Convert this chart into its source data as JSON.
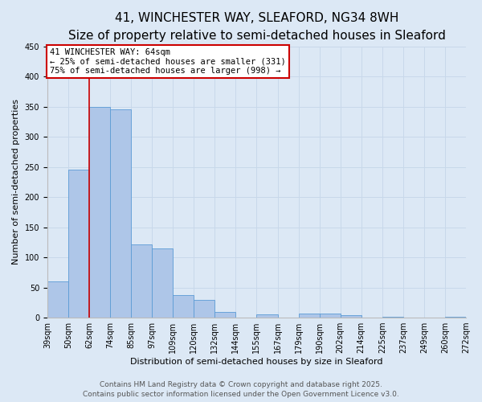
{
  "title_line1": "41, WINCHESTER WAY, SLEAFORD, NG34 8WH",
  "title_line2": "Size of property relative to semi-detached houses in Sleaford",
  "bar_heights": [
    60,
    245,
    350,
    345,
    122,
    115,
    38,
    29,
    9,
    0,
    6,
    0,
    7,
    7,
    4,
    0,
    1,
    0,
    0,
    2
  ],
  "bin_labels": [
    "39sqm",
    "50sqm",
    "62sqm",
    "74sqm",
    "85sqm",
    "97sqm",
    "109sqm",
    "120sqm",
    "132sqm",
    "144sqm",
    "155sqm",
    "167sqm",
    "179sqm",
    "190sqm",
    "202sqm",
    "214sqm",
    "225sqm",
    "237sqm",
    "249sqm",
    "260sqm",
    "272sqm"
  ],
  "bar_color": "#aec6e8",
  "bar_edge_color": "#5b9bd5",
  "bar_width": 1.0,
  "vline_x_idx": 2,
  "vline_color": "#cc0000",
  "ylabel": "Number of semi-detached properties",
  "xlabel": "Distribution of semi-detached houses by size in Sleaford",
  "ylim": [
    0,
    450
  ],
  "yticks": [
    0,
    50,
    100,
    150,
    200,
    250,
    300,
    350,
    400,
    450
  ],
  "grid_color": "#c8d8ea",
  "bg_color": "#dce8f5",
  "annotation_box_title": "41 WINCHESTER WAY: 64sqm",
  "annotation_line1": "← 25% of semi-detached houses are smaller (331)",
  "annotation_line2": "75% of semi-detached houses are larger (998) →",
  "annotation_box_edge_color": "#cc0000",
  "footer_line1": "Contains HM Land Registry data © Crown copyright and database right 2025.",
  "footer_line2": "Contains public sector information licensed under the Open Government Licence v3.0.",
  "title_fontsize": 11,
  "subtitle_fontsize": 9,
  "axis_label_fontsize": 8,
  "tick_fontsize": 7,
  "annotation_fontsize": 7.5,
  "footer_fontsize": 6.5
}
